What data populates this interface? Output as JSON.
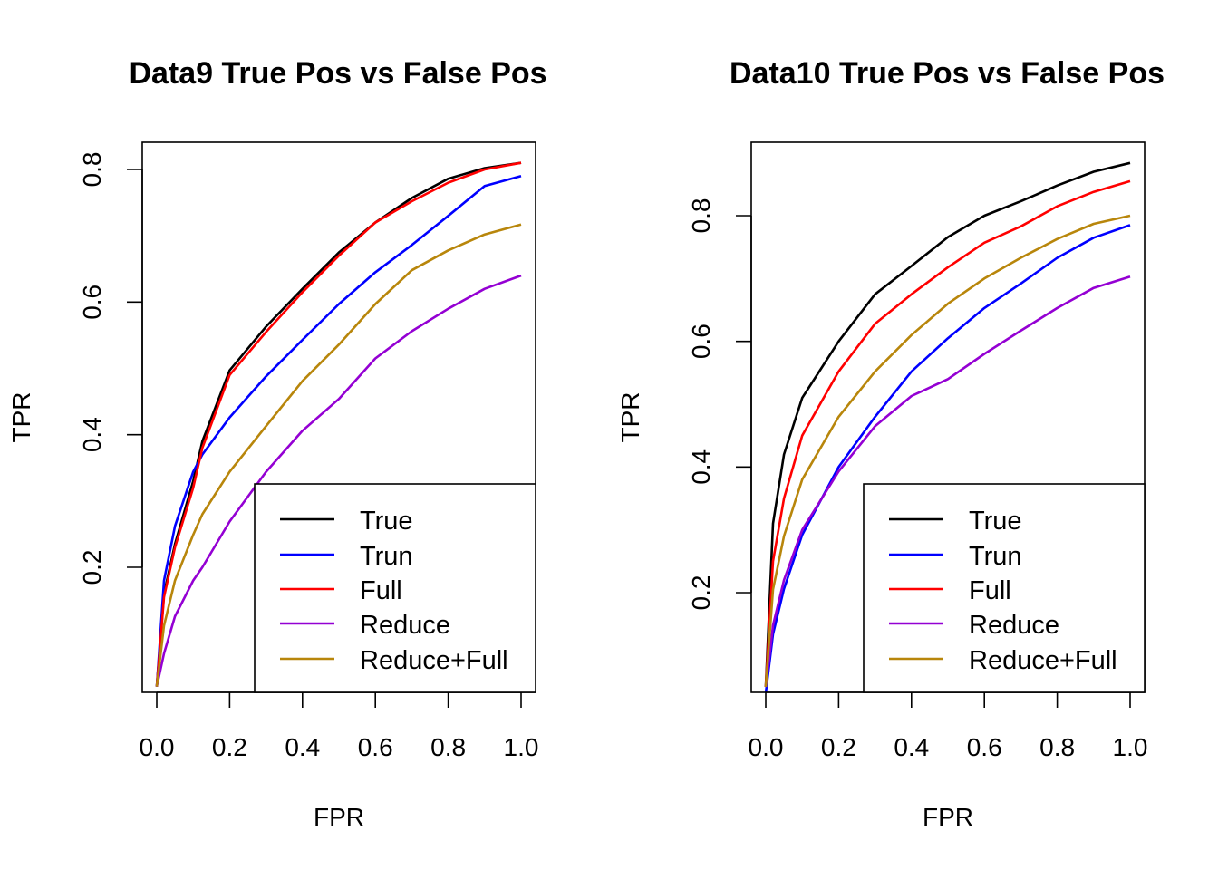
{
  "colors": {
    "True": "#000000",
    "Trun": "#0000ff",
    "Full": "#ff0000",
    "Reduce": "#9400d3",
    "Reduce+Full": "#b8860b"
  },
  "chart_data": [
    {
      "type": "line",
      "title": "Data9 True Pos vs False Pos",
      "xlabel": "FPR",
      "ylabel": "TPR",
      "xlim": [
        0,
        1
      ],
      "ylim": [
        0.02,
        0.81
      ],
      "xticks": [
        "0.0",
        "0.2",
        "0.4",
        "0.6",
        "0.8",
        "1.0"
      ],
      "yticks": [
        "0.2",
        "0.4",
        "0.6",
        "0.8"
      ],
      "legend_position": "bottom-right",
      "x": [
        0,
        0.02,
        0.05,
        0.1,
        0.125,
        0.2,
        0.3,
        0.4,
        0.5,
        0.6,
        0.7,
        0.8,
        0.9,
        1.0
      ],
      "series": [
        {
          "name": "True",
          "values": [
            0.02,
            0.16,
            0.235,
            0.33,
            0.39,
            0.497,
            0.563,
            0.62,
            0.675,
            0.72,
            0.757,
            0.786,
            0.802,
            0.81
          ]
        },
        {
          "name": "Trun",
          "values": [
            0.02,
            0.18,
            0.262,
            0.344,
            0.37,
            0.426,
            0.488,
            0.543,
            0.597,
            0.645,
            0.686,
            0.73,
            0.775,
            0.79
          ]
        },
        {
          "name": "Full",
          "values": [
            0.02,
            0.155,
            0.23,
            0.32,
            0.38,
            0.49,
            0.555,
            0.615,
            0.67,
            0.72,
            0.752,
            0.78,
            0.8,
            0.81
          ]
        },
        {
          "name": "Reduce",
          "values": [
            0.02,
            0.07,
            0.126,
            0.18,
            0.2,
            0.269,
            0.344,
            0.406,
            0.454,
            0.515,
            0.556,
            0.59,
            0.62,
            0.64
          ]
        },
        {
          "name": "Reduce+Full",
          "values": [
            0.02,
            0.112,
            0.18,
            0.249,
            0.28,
            0.344,
            0.413,
            0.481,
            0.536,
            0.597,
            0.648,
            0.678,
            0.702,
            0.717
          ]
        }
      ]
    },
    {
      "type": "line",
      "title": "Data10 True Pos vs False Pos",
      "xlabel": "FPR",
      "ylabel": "TPR",
      "xlim": [
        0,
        1
      ],
      "ylim": [
        0.04,
        0.884
      ],
      "xticks": [
        "0.0",
        "0.2",
        "0.4",
        "0.6",
        "0.8",
        "1.0"
      ],
      "yticks": [
        "0.2",
        "0.4",
        "0.6",
        "0.8"
      ],
      "legend_position": "bottom-right",
      "x": [
        0,
        0.02,
        0.05,
        0.1,
        0.2,
        0.3,
        0.4,
        0.5,
        0.6,
        0.7,
        0.8,
        0.9,
        1.0
      ],
      "series": [
        {
          "name": "True",
          "values": [
            0.05,
            0.31,
            0.42,
            0.51,
            0.6,
            0.675,
            0.72,
            0.766,
            0.8,
            0.823,
            0.848,
            0.87,
            0.884
          ]
        },
        {
          "name": "Trun",
          "values": [
            0.04,
            0.134,
            0.206,
            0.292,
            0.4,
            0.48,
            0.552,
            0.605,
            0.653,
            0.692,
            0.733,
            0.765,
            0.785
          ]
        },
        {
          "name": "Full",
          "values": [
            0.05,
            0.25,
            0.35,
            0.45,
            0.552,
            0.628,
            0.675,
            0.718,
            0.757,
            0.783,
            0.815,
            0.838,
            0.855
          ]
        },
        {
          "name": "Reduce",
          "values": [
            0.05,
            0.148,
            0.22,
            0.3,
            0.393,
            0.465,
            0.513,
            0.54,
            0.58,
            0.617,
            0.653,
            0.685,
            0.703
          ]
        },
        {
          "name": "Reduce+Full",
          "values": [
            0.05,
            0.205,
            0.29,
            0.38,
            0.48,
            0.552,
            0.61,
            0.66,
            0.7,
            0.733,
            0.763,
            0.787,
            0.8
          ]
        }
      ]
    }
  ]
}
